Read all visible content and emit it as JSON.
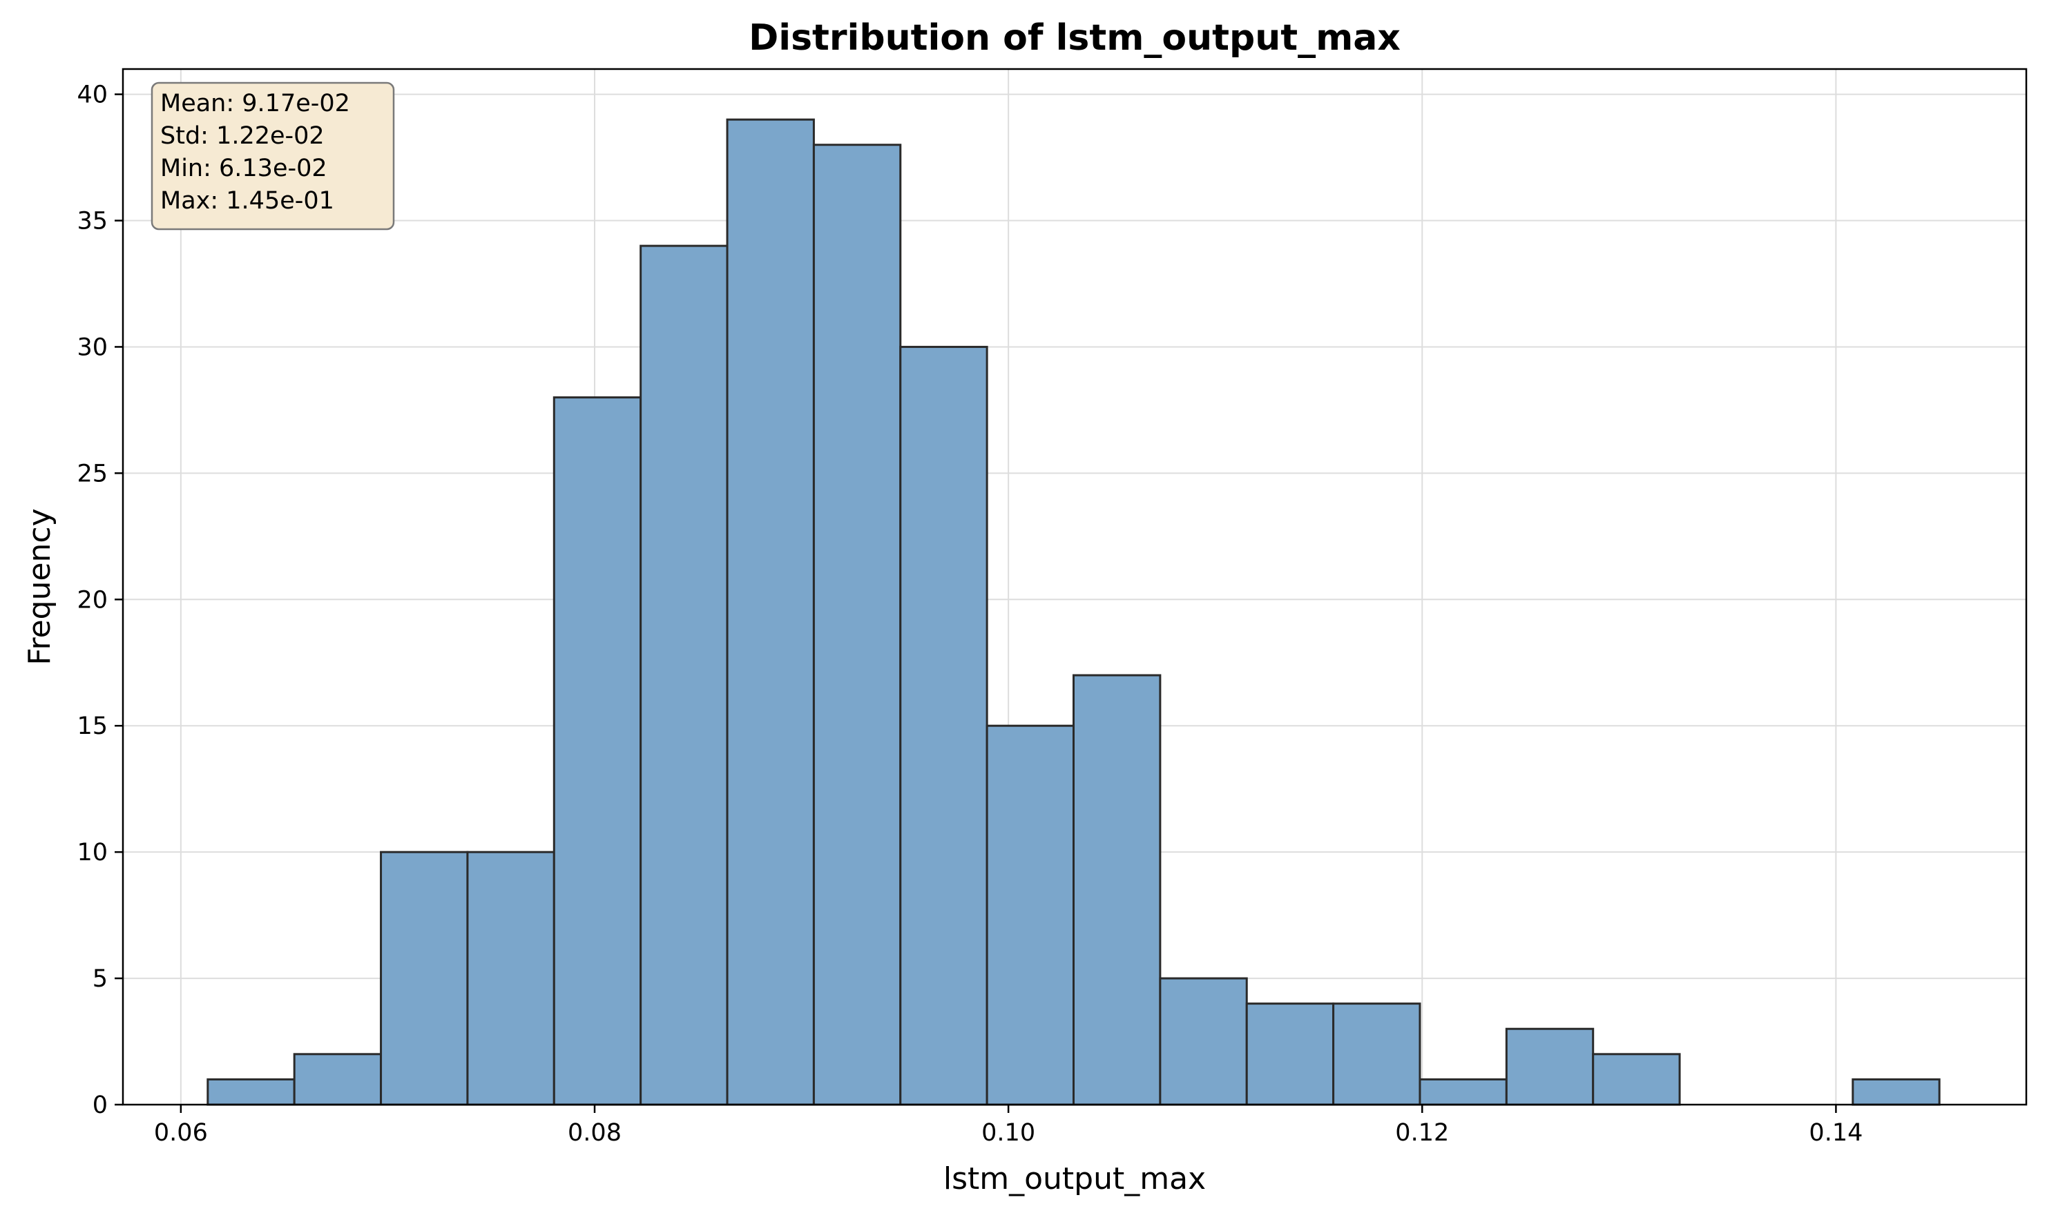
{
  "chart_data": {
    "type": "bar",
    "title": "Distribution of lstm_output_max",
    "xlabel": "lstm_output_max",
    "ylabel": "Frequency",
    "xlim": [
      0.0572,
      0.1492
    ],
    "ylim": [
      0,
      41
    ],
    "xticks": [
      0.06,
      0.08,
      0.1,
      0.12,
      0.14
    ],
    "xtick_labels": [
      "0.06",
      "0.08",
      "0.10",
      "0.12",
      "0.14"
    ],
    "yticks": [
      0,
      5,
      10,
      15,
      20,
      25,
      30,
      35,
      40
    ],
    "ytick_labels": [
      "0",
      "5",
      "10",
      "15",
      "20",
      "25",
      "30",
      "35",
      "40"
    ],
    "grid": true,
    "bin_start": 0.0613,
    "bin_end": 0.145,
    "counts": [
      1,
      2,
      10,
      10,
      28,
      34,
      39,
      38,
      30,
      15,
      17,
      5,
      4,
      4,
      1,
      3,
      2,
      0,
      0,
      1
    ],
    "bar_color": "#7ba6cb",
    "edge_color": "#2a2a2a",
    "stats_box": {
      "lines": [
        "Mean: 9.17e-02",
        "Std: 1.22e-02",
        "Min: 6.13e-02",
        "Max: 1.45e-01"
      ],
      "background": "#f6ead3",
      "border": "#7a7a7a"
    }
  }
}
